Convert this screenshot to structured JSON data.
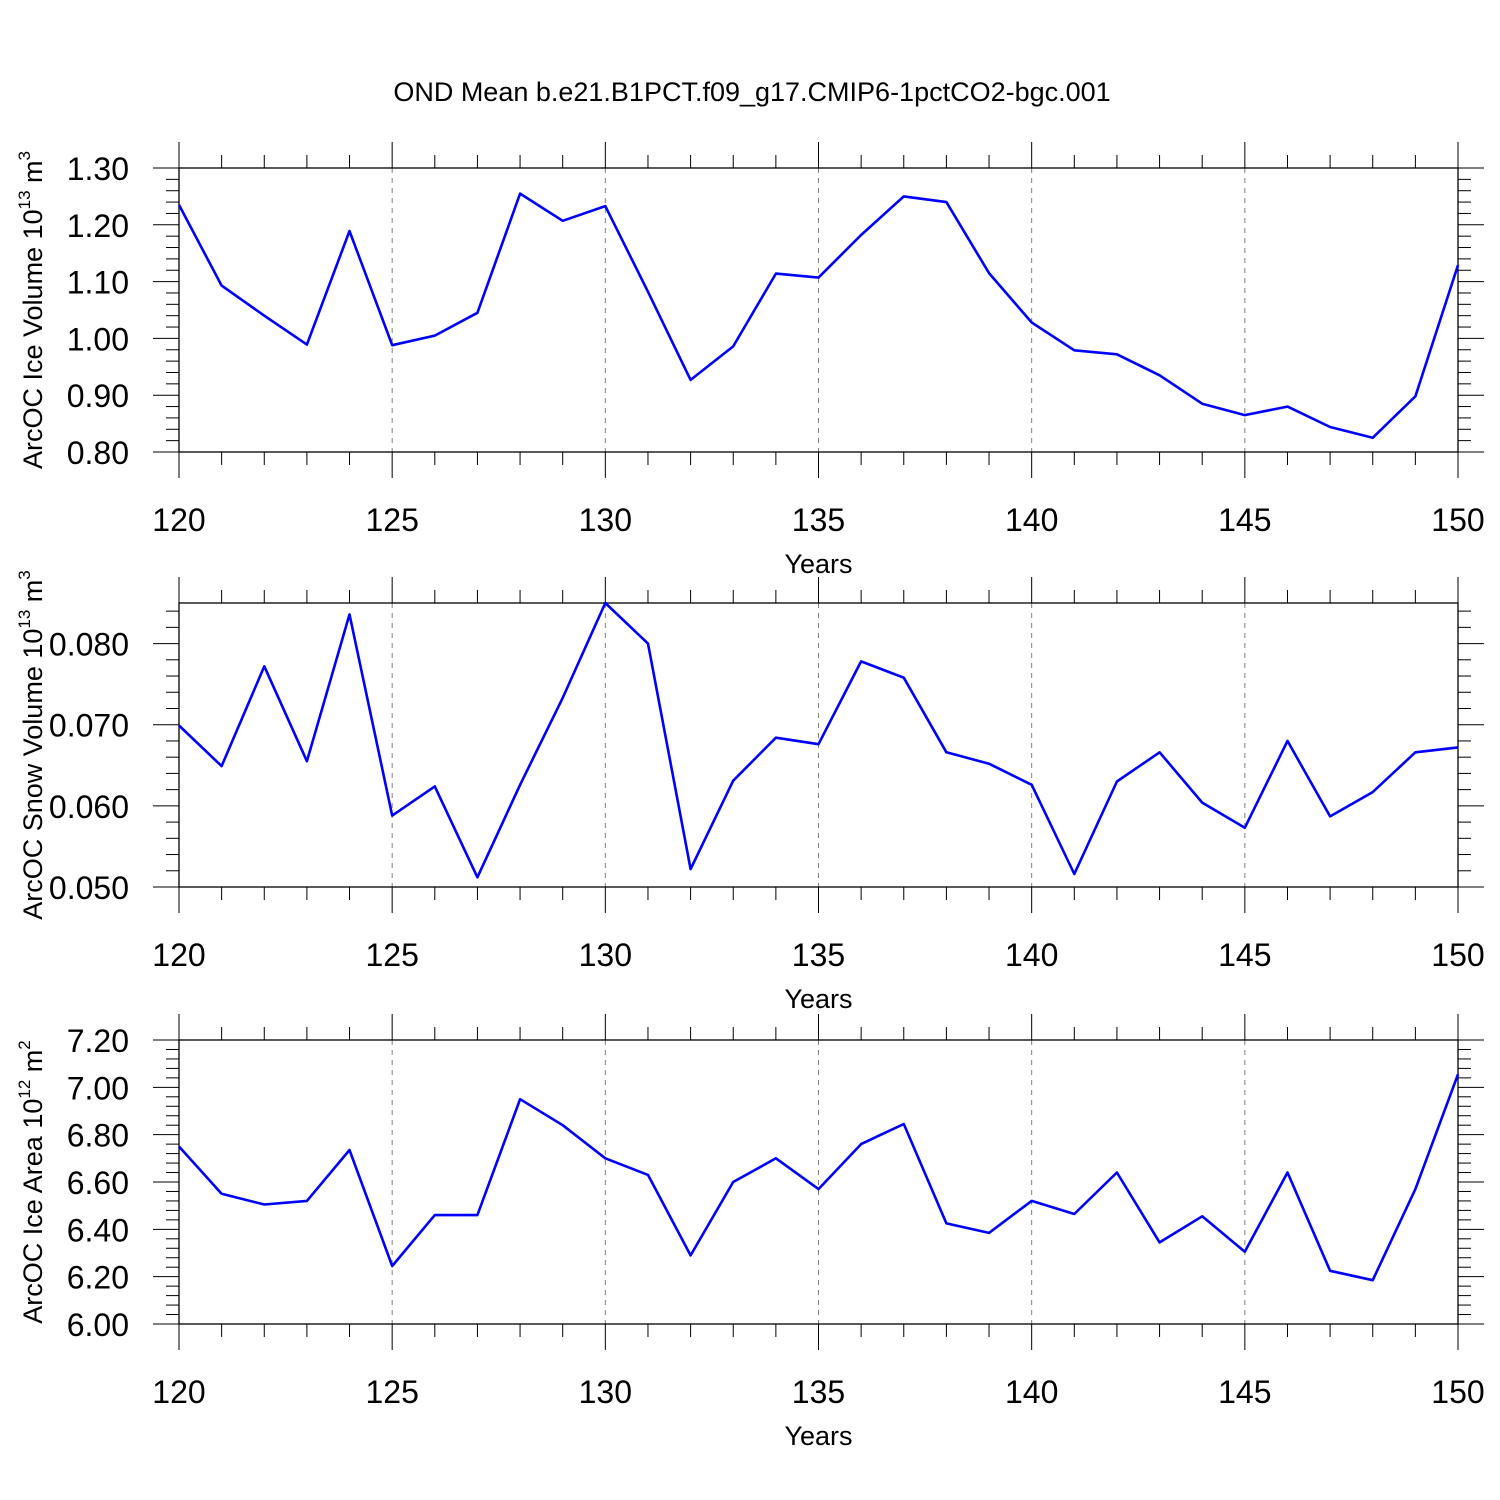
{
  "title": "OND Mean b.e21.B1PCT.f09_g17.CMIP6-1pctCO2-bgc.001",
  "colors": {
    "line": "#0000ff",
    "axis": "#000000",
    "grid": "#808080"
  },
  "chart_data": [
    {
      "type": "line",
      "ylabel": "ArcOC Ice Volume 10",
      "ylabel_exp": "13",
      "ylabel_unit": " m",
      "ylabel_unit_exp": "3",
      "xlabel": "Years",
      "xlim": [
        120,
        150
      ],
      "ylim": [
        0.8,
        1.3
      ],
      "yticks": [
        "0.80",
        "0.90",
        "1.00",
        "1.10",
        "1.20",
        "1.30"
      ],
      "xticks": [
        "120",
        "125",
        "130",
        "135",
        "140",
        "145",
        "150"
      ],
      "grid": "vertical dashed at major x ticks",
      "x": [
        120,
        121,
        122,
        123,
        124,
        125,
        126,
        127,
        128,
        129,
        130,
        131,
        132,
        133,
        134,
        135,
        136,
        137,
        138,
        139,
        140,
        141,
        142,
        143,
        144,
        145,
        146,
        147,
        148,
        149,
        150
      ],
      "values": [
        1.235,
        1.093,
        1.04,
        0.989,
        1.189,
        0.988,
        1.005,
        1.045,
        1.255,
        1.207,
        1.233,
        1.082,
        0.927,
        0.986,
        1.114,
        1.107,
        1.182,
        1.25,
        1.24,
        1.115,
        1.028,
        0.979,
        0.972,
        0.935,
        0.885,
        0.865,
        0.88,
        0.844,
        0.825,
        0.898,
        1.129
      ]
    },
    {
      "type": "line",
      "ylabel": "ArcOC Snow Volume 10",
      "ylabel_exp": "13",
      "ylabel_unit": " m",
      "ylabel_unit_exp": "3",
      "xlabel": "Years",
      "xlim": [
        120,
        150
      ],
      "ylim": [
        0.05,
        0.085
      ],
      "yticks": [
        "0.050",
        "0.060",
        "0.070",
        "0.080"
      ],
      "ytick_values": [
        0.05,
        0.06,
        0.07,
        0.08
      ],
      "xticks": [
        "120",
        "125",
        "130",
        "135",
        "140",
        "145",
        "150"
      ],
      "grid": "vertical dashed at major x ticks",
      "x": [
        120,
        121,
        122,
        123,
        124,
        125,
        126,
        127,
        128,
        129,
        130,
        131,
        132,
        133,
        134,
        135,
        136,
        137,
        138,
        139,
        140,
        141,
        142,
        143,
        144,
        145,
        146,
        147,
        148,
        149,
        150
      ],
      "values": [
        0.0699,
        0.0649,
        0.0772,
        0.0655,
        0.0836,
        0.0588,
        0.0624,
        0.0512,
        0.0626,
        0.0733,
        0.085,
        0.08,
        0.0522,
        0.0631,
        0.0684,
        0.0676,
        0.0778,
        0.0758,
        0.0666,
        0.0652,
        0.0626,
        0.0516,
        0.063,
        0.0666,
        0.0604,
        0.0573,
        0.068,
        0.0587,
        0.0617,
        0.0666,
        0.0672
      ]
    },
    {
      "type": "line",
      "ylabel": "ArcOC Ice Area 10",
      "ylabel_exp": "12",
      "ylabel_unit": " m",
      "ylabel_unit_exp": "2",
      "xlabel": "Years",
      "xlim": [
        120,
        150
      ],
      "ylim": [
        6.0,
        7.2
      ],
      "yticks": [
        "6.00",
        "6.20",
        "6.40",
        "6.60",
        "6.80",
        "7.00",
        "7.20"
      ],
      "xticks": [
        "120",
        "125",
        "130",
        "135",
        "140",
        "145",
        "150"
      ],
      "grid": "vertical dashed at major x ticks",
      "x": [
        120,
        121,
        122,
        123,
        124,
        125,
        126,
        127,
        128,
        129,
        130,
        131,
        132,
        133,
        134,
        135,
        136,
        137,
        138,
        139,
        140,
        141,
        142,
        143,
        144,
        145,
        146,
        147,
        148,
        149,
        150
      ],
      "values": [
        6.75,
        6.55,
        6.505,
        6.52,
        6.735,
        6.245,
        6.46,
        6.46,
        6.95,
        6.84,
        6.7,
        6.63,
        6.29,
        6.6,
        6.7,
        6.57,
        6.76,
        6.845,
        6.425,
        6.385,
        6.52,
        6.465,
        6.64,
        6.345,
        6.455,
        6.305,
        6.64,
        6.225,
        6.185,
        6.57,
        7.055
      ]
    }
  ]
}
